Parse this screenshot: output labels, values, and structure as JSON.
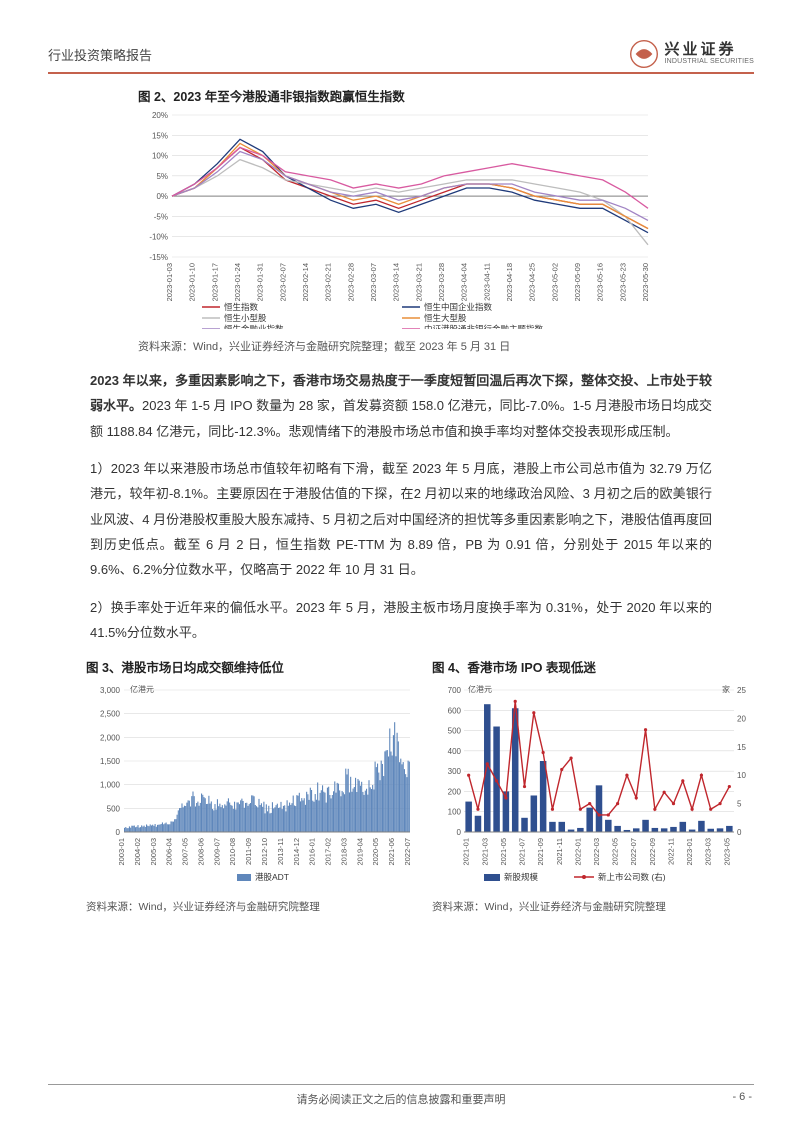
{
  "header": {
    "title": "行业投资策略报告",
    "logo_cn": "兴业证券",
    "logo_en": "INDUSTRIAL SECURITIES"
  },
  "fig2": {
    "title": "图 2、2023 年至今港股通非银指数跑赢恒生指数",
    "source": "资料来源：Wind，兴业证券经济与金融研究院整理；截至 2023 年 5 月 31 日",
    "type": "line",
    "ylabel_unit": "%",
    "ylim": [
      -15,
      20
    ],
    "ytick_step": 5,
    "yticks": [
      "20%",
      "15%",
      "10%",
      "5%",
      "0%",
      "-5%",
      "-10%",
      "-15%"
    ],
    "x_dates": [
      "2023-01-03",
      "2023-01-10",
      "2023-01-17",
      "2023-01-24",
      "2023-01-31",
      "2023-02-07",
      "2023-02-14",
      "2023-02-21",
      "2023-02-28",
      "2023-03-07",
      "2023-03-14",
      "2023-03-21",
      "2023-03-28",
      "2023-04-04",
      "2023-04-11",
      "2023-04-18",
      "2023-04-25",
      "2023-05-02",
      "2023-05-09",
      "2023-05-16",
      "2023-05-23",
      "2023-05-30"
    ],
    "series": [
      {
        "name": "恒生指数",
        "color": "#c0272d",
        "values": [
          0,
          2,
          7,
          12,
          9,
          4,
          2,
          0,
          -2,
          -1,
          -3,
          -1,
          1,
          3,
          3,
          2,
          0,
          -1,
          -2,
          -2,
          -5,
          -8
        ]
      },
      {
        "name": "恒生中国企业指数",
        "color": "#1f3a7a",
        "values": [
          0,
          3,
          8,
          14,
          11,
          5,
          2,
          -1,
          -3,
          -2,
          -4,
          -2,
          0,
          2,
          2,
          1,
          -1,
          -2,
          -3,
          -3,
          -6,
          -9
        ]
      },
      {
        "name": "恒生小型股",
        "color": "#bdbdbd",
        "values": [
          0,
          2,
          5,
          9,
          7,
          4,
          3,
          2,
          1,
          2,
          1,
          2,
          3,
          4,
          4,
          4,
          3,
          2,
          1,
          -1,
          -5,
          -12
        ]
      },
      {
        "name": "恒生大型股",
        "color": "#e98f3a",
        "values": [
          0,
          2,
          7,
          13,
          10,
          5,
          3,
          1,
          -1,
          0,
          -2,
          0,
          2,
          3,
          3,
          2,
          0,
          -1,
          -2,
          -2,
          -5,
          -8
        ]
      },
      {
        "name": "恒生金融业指数",
        "color": "#a184c4",
        "values": [
          0,
          2,
          6,
          11,
          9,
          5,
          3,
          1,
          0,
          1,
          -1,
          0,
          2,
          3,
          3,
          3,
          1,
          0,
          -1,
          -1,
          -3,
          -6
        ]
      },
      {
        "name": "中证港股通非银行金融主题指数",
        "color": "#d85aa0",
        "values": [
          0,
          3,
          7,
          12,
          10,
          6,
          5,
          4,
          2,
          3,
          2,
          3,
          5,
          6,
          7,
          8,
          7,
          6,
          5,
          4,
          1,
          -3
        ]
      }
    ],
    "background_color": "#ffffff",
    "grid_color": "#d9d9d9",
    "axis_color": "#808080",
    "tick_fontsize": 8,
    "legend_fontsize": 9
  },
  "para1": {
    "bold": "2023 年以来，多重因素影响之下，香港市场交易热度于一季度短暂回温后再次下探，整体交投、上市处于较弱水平。",
    "rest": "2023 年 1-5 月 IPO 数量为 28 家，首发募资额 158.0 亿港元，同比-7.0%。1-5 月港股市场日均成交额 1188.84 亿港元，同比-12.3%。悲观情绪下的港股市场总市值和换手率均对整体交投表现形成压制。"
  },
  "para2": "1）2023 年以来港股市场总市值较年初略有下滑，截至 2023 年 5 月底，港股上市公司总市值为 32.79 万亿港元，较年初-8.1%。主要原因在于港股估值的下探，在2 月初以来的地缘政治风险、3 月初之后的欧美银行业风波、4 月份港股权重股大股东减持、5 月初之后对中国经济的担忧等多重因素影响之下，港股估值再度回到历史低点。截至 6 月 2 日，恒生指数 PE-TTM 为 8.89 倍，PB 为 0.91 倍，分别处于 2015 年以来的 9.6%、6.2%分位数水平，仅略高于 2022 年 10 月 31 日。",
  "para3": "2）换手率处于近年来的偏低水平。2023 年 5 月，港股主板市场月度换手率为 0.31%，处于 2020 年以来的 41.5%分位数水平。",
  "fig3": {
    "title": "图 3、港股市场日均成交额维持低位",
    "source": "资料来源：Wind，兴业证券经济与金融研究院整理",
    "type": "bar",
    "y_unit": "亿港元",
    "ylim": [
      0,
      3000
    ],
    "ytick_step": 500,
    "yticks": [
      "0",
      "500",
      "1,000",
      "1,500",
      "2,000",
      "2,500",
      "3,000"
    ],
    "x_years": [
      "2003-01",
      "2004-02",
      "2005-03",
      "2006-04",
      "2007-05",
      "2008-06",
      "2009-07",
      "2010-08",
      "2011-09",
      "2012-10",
      "2013-11",
      "2014-12",
      "2016-01",
      "2017-02",
      "2018-03",
      "2019-04",
      "2020-05",
      "2021-06",
      "2022-07"
    ],
    "legend": "港股ADT",
    "bar_color": "#5f87bb",
    "grid_color": "#d9d9d9",
    "axis_color": "#808080",
    "background_color": "#ffffff",
    "values": [
      100,
      120,
      140,
      200,
      700,
      650,
      550,
      600,
      650,
      500,
      550,
      700,
      850,
      800,
      1100,
      900,
      1300,
      2100,
      1250
    ]
  },
  "fig4": {
    "title": "图 4、香港市场 IPO 表现低迷",
    "source": "资料来源：Wind，兴业证券经济与金融研究院整理",
    "type": "bar-line",
    "y_left_unit": "亿港元",
    "y_right_unit": "家",
    "y_left_lim": [
      0,
      700
    ],
    "y_left_step": 100,
    "y_left_ticks": [
      "0",
      "100",
      "200",
      "300",
      "400",
      "500",
      "600",
      "700"
    ],
    "y_right_lim": [
      0,
      25
    ],
    "y_right_step": 5,
    "y_right_ticks": [
      "0",
      "5",
      "10",
      "15",
      "20",
      "25"
    ],
    "x_months": [
      "2021-01",
      "2021-03",
      "2021-05",
      "2021-07",
      "2021-09",
      "2021-11",
      "2022-01",
      "2022-03",
      "2022-05",
      "2022-07",
      "2022-09",
      "2022-11",
      "2023-01",
      "2023-03",
      "2023-05"
    ],
    "bars": {
      "name": "新股规模",
      "color": "#2f4f8f",
      "values": [
        150,
        80,
        630,
        520,
        200,
        610,
        70,
        180,
        350,
        50,
        50,
        12,
        20,
        120,
        230,
        60,
        30,
        10,
        18,
        60,
        20,
        18,
        25,
        50,
        12,
        55,
        16,
        18,
        30
      ]
    },
    "line": {
      "name": "新上市公司数 (右)",
      "color": "#c0272d",
      "values": [
        10,
        4,
        12,
        9,
        6,
        23,
        8,
        21,
        14,
        4,
        11,
        13,
        4,
        5,
        3,
        3,
        5,
        10,
        6,
        18,
        4,
        7,
        5,
        9,
        4,
        10,
        4,
        5,
        8
      ]
    },
    "grid_color": "#d9d9d9",
    "axis_color": "#808080",
    "background_color": "#ffffff"
  },
  "footer": {
    "text": "请务必阅读正文之后的信息披露和重要声明",
    "page": "- 6 -"
  }
}
